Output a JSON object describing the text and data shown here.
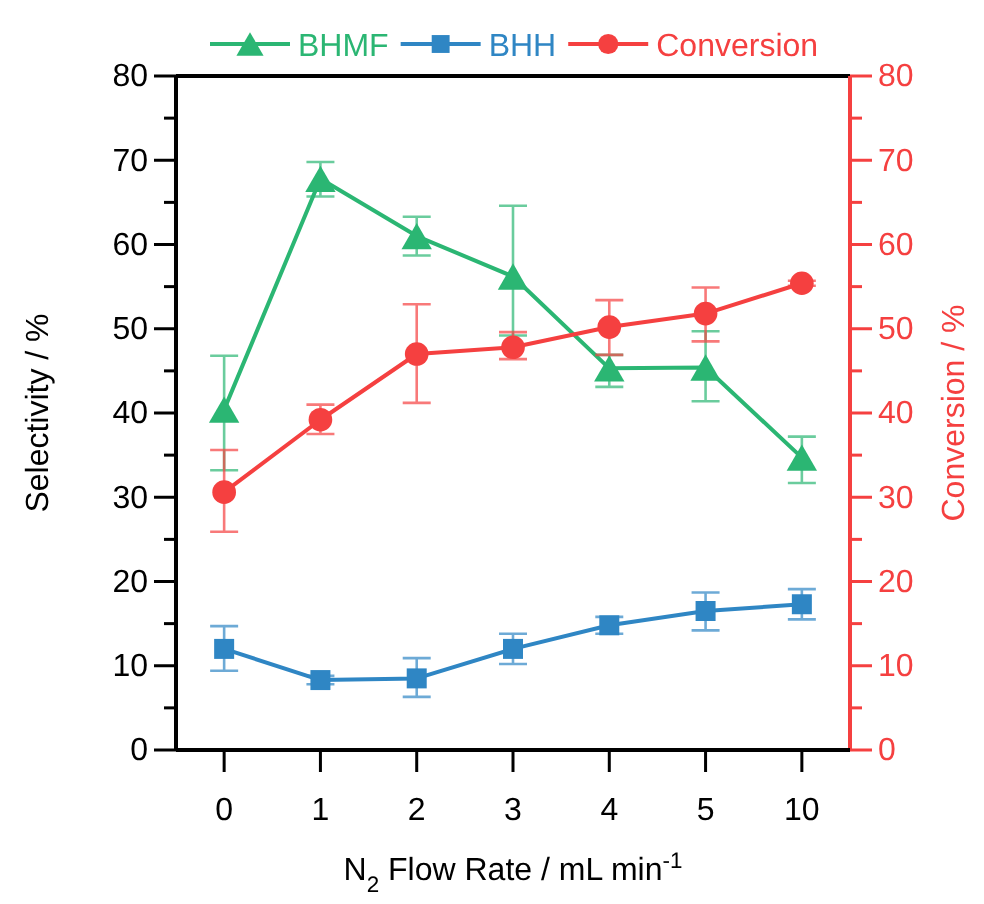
{
  "chart_data": {
    "type": "line",
    "xlabel": "N$_{2}$ Flow Rate / mL min$^{-1}$",
    "ylabel": "Selectivity / %",
    "y2label": "Conversion / %",
    "categories": [
      "0",
      "1",
      "2",
      "3",
      "4",
      "5",
      "10"
    ],
    "ylim": [
      0,
      80
    ],
    "yticks": [
      0,
      {
        "value": 5,
        "label": null
      },
      10,
      {
        "value": 15,
        "label": null
      },
      20,
      {
        "value": 25,
        "label": null
      },
      30,
      {
        "value": 35,
        "label": null
      },
      40,
      {
        "value": 45,
        "label": null
      },
      50,
      {
        "value": 55,
        "label": null
      },
      60,
      {
        "value": 65,
        "label": null
      },
      70,
      {
        "value": 75,
        "label": null
      },
      80
    ],
    "y2lim": [
      0,
      80
    ],
    "y2ticks": [
      0,
      {
        "value": 5,
        "label": null
      },
      10,
      {
        "value": 15,
        "label": null
      },
      20,
      {
        "value": 25,
        "label": null
      },
      30,
      {
        "value": 35,
        "label": null
      },
      40,
      {
        "value": 45,
        "label": null
      },
      50,
      {
        "value": 55,
        "label": null
      },
      60,
      {
        "value": 65,
        "label": null
      },
      70,
      {
        "value": 75,
        "label": null
      },
      80
    ],
    "legend": "top",
    "grid": false,
    "line_style": "solid",
    "series": [
      {
        "name": "BHMF",
        "color": "#2bb673",
        "marker": "triangle",
        "values": [
          40.4,
          67.8,
          61.0,
          56.2,
          45.3,
          45.4,
          34.7
        ],
        "errors": [
          [
            33.2,
            46.8
          ],
          [
            65.7,
            69.8
          ],
          [
            58.7,
            63.3
          ],
          [
            49.2,
            64.6
          ],
          [
            43.1,
            46.9
          ],
          [
            41.4,
            49.7
          ],
          [
            31.7,
            37.2
          ]
        ]
      },
      {
        "name": "BHH",
        "color": "#2f86c4",
        "marker": "square",
        "values": [
          12.0,
          8.3,
          8.5,
          12.0,
          14.8,
          16.5,
          17.3
        ],
        "errors": [
          [
            9.4,
            14.7
          ],
          [
            7.8,
            8.8
          ],
          [
            6.3,
            10.9
          ],
          [
            10.2,
            13.8
          ],
          [
            13.8,
            15.8
          ],
          [
            14.2,
            18.7
          ],
          [
            15.5,
            19.1
          ]
        ]
      },
      {
        "name": "Conversion",
        "color": "#f54040",
        "marker": "circle",
        "axis": "y2",
        "values": [
          30.6,
          39.2,
          47.0,
          47.8,
          50.2,
          51.8,
          55.4
        ],
        "errors": [
          [
            25.9,
            35.6
          ],
          [
            37.5,
            41.0
          ],
          [
            41.2,
            52.9
          ],
          [
            46.4,
            49.6
          ],
          [
            46.9,
            53.4
          ],
          [
            48.5,
            54.9
          ],
          [
            55.1,
            55.7
          ]
        ]
      }
    ]
  }
}
